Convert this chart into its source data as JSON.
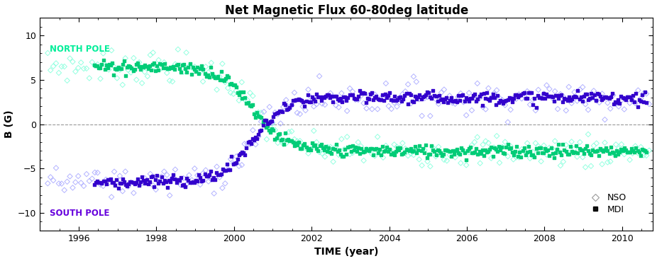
{
  "title": "Net Magnetic Flux 60-80deg latitude",
  "xlabel": "TIME (year)",
  "ylabel": "B (G)",
  "xlim": [
    1995.0,
    2010.8
  ],
  "ylim": [
    -12,
    12
  ],
  "yticks": [
    -10,
    -5,
    0,
    5,
    10
  ],
  "xticks": [
    1996,
    1998,
    2000,
    2002,
    2004,
    2006,
    2008,
    2010
  ],
  "north_label": "NORTH POLE",
  "south_label": "SOUTH POLE",
  "north_label_color": "#00ee99",
  "south_label_color": "#6600dd",
  "nso_color_north": "#88ffdd",
  "nso_color_south": "#aaaaff",
  "mdi_color_north": "#00cc77",
  "mdi_color_south": "#3300cc",
  "background_color": "#ffffff",
  "legend_nso_color": "#999999",
  "legend_mdi_color": "#111111"
}
